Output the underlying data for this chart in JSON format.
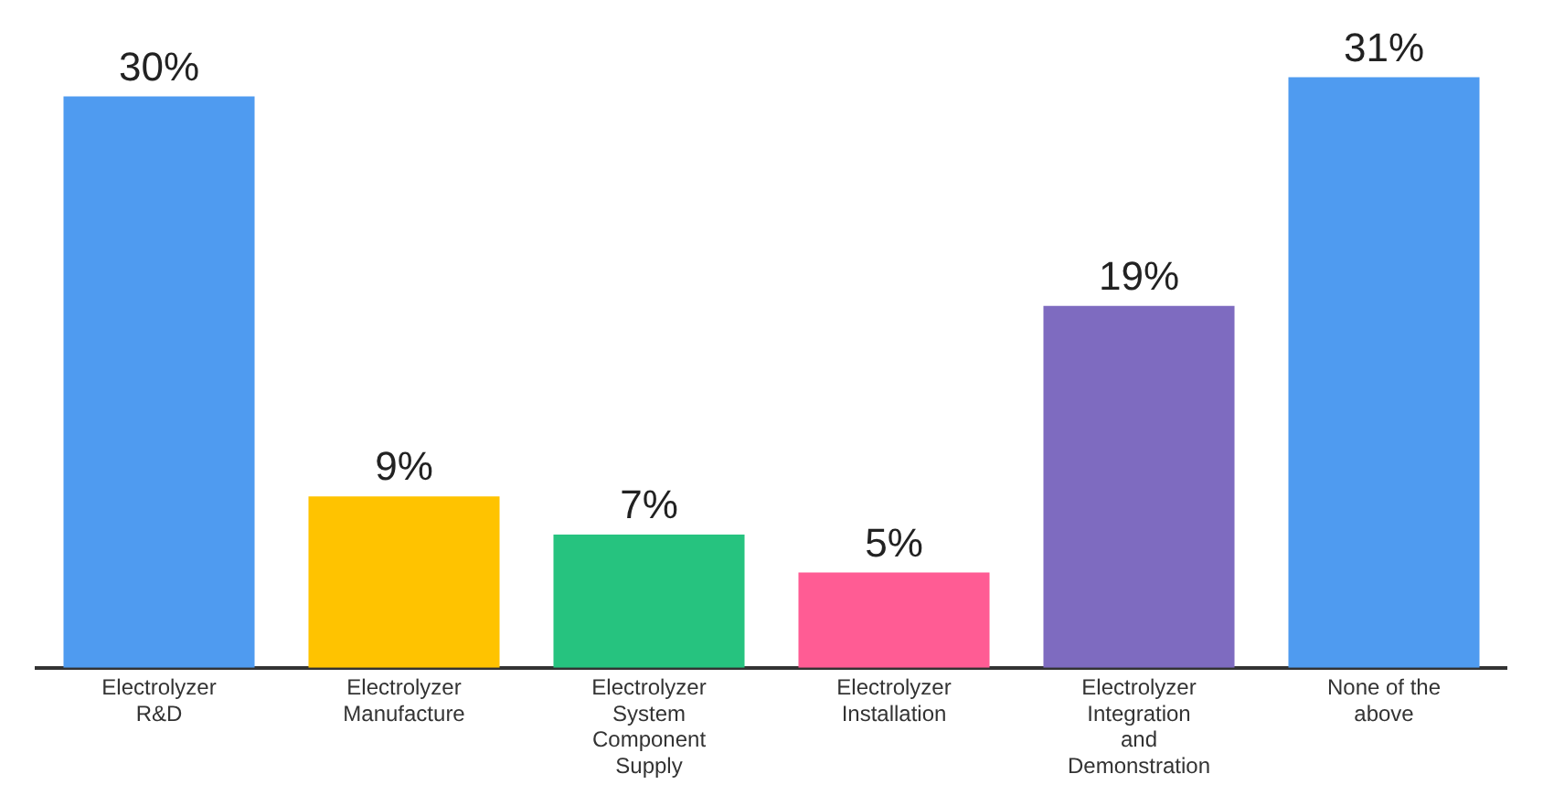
{
  "chart_data": {
    "type": "bar",
    "categories": [
      "Electrolyzer R&D",
      "Electrolyzer Manufacture",
      "Electrolyzer System Component Supply",
      "Electrolyzer Installation",
      "Electrolyzer Integration and Demonstration",
      "None of the above"
    ],
    "values": [
      30,
      9,
      7,
      5,
      19,
      31
    ],
    "colors": [
      "#4f9bf0",
      "#ffc300",
      "#26c37f",
      "#ff5c94",
      "#7e6bc0",
      "#4f9bf0"
    ],
    "value_labels": [
      "30%",
      "9%",
      "7%",
      "5%",
      "19%",
      "31%"
    ],
    "grid": false,
    "legend": false
  }
}
